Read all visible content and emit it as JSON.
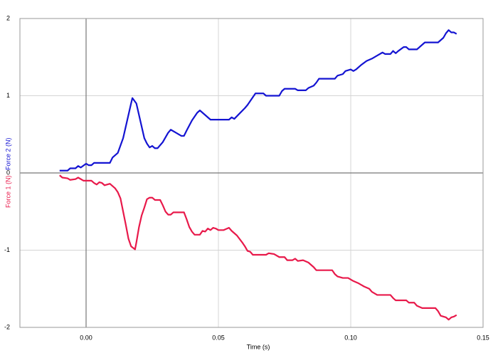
{
  "chart_data": {
    "type": "line",
    "xlabel": "Time (s)",
    "xlim": [
      -0.025,
      0.15
    ],
    "ylim": [
      -2,
      2
    ],
    "xticks": [
      {
        "value": 0,
        "label": "0.00"
      },
      {
        "value": 0.05,
        "label": "0.05"
      },
      {
        "value": 0.1,
        "label": "0.10"
      },
      {
        "value": 0.15,
        "label": "0.15"
      }
    ],
    "yticks": [
      -2,
      -1,
      0,
      1,
      2
    ],
    "grid": true,
    "series": [
      {
        "name": "Force 1 (N)",
        "color": "#e8194a",
        "x": [
          -0.01,
          -0.009,
          -0.007,
          -0.006,
          -0.004,
          -0.003,
          -0.001,
          0.002,
          0.003,
          0.004,
          0.005,
          0.006,
          0.007,
          0.009,
          0.01,
          0.011,
          0.012,
          0.013,
          0.014,
          0.015,
          0.016,
          0.017,
          0.0185,
          0.019,
          0.02,
          0.021,
          0.022,
          0.023,
          0.024,
          0.025,
          0.026,
          0.028,
          0.029,
          0.03,
          0.031,
          0.032,
          0.033,
          0.037,
          0.038,
          0.039,
          0.04,
          0.041,
          0.043,
          0.044,
          0.045,
          0.046,
          0.047,
          0.048,
          0.049,
          0.05,
          0.052,
          0.054,
          0.055,
          0.057,
          0.059,
          0.06,
          0.061,
          0.062,
          0.063,
          0.068,
          0.069,
          0.071,
          0.073,
          0.075,
          0.076,
          0.078,
          0.079,
          0.08,
          0.082,
          0.084,
          0.086,
          0.087,
          0.093,
          0.094,
          0.095,
          0.097,
          0.099,
          0.101,
          0.103,
          0.105,
          0.107,
          0.108,
          0.11,
          0.115,
          0.116,
          0.117,
          0.121,
          0.122,
          0.124,
          0.125,
          0.127,
          0.132,
          0.133,
          0.134,
          0.136,
          0.137,
          0.138,
          0.139,
          0.14
        ],
        "values": [
          -0.03,
          -0.06,
          -0.07,
          -0.09,
          -0.08,
          -0.06,
          -0.1,
          -0.1,
          -0.13,
          -0.15,
          -0.12,
          -0.13,
          -0.16,
          -0.14,
          -0.17,
          -0.2,
          -0.25,
          -0.33,
          -0.5,
          -0.67,
          -0.85,
          -0.95,
          -0.99,
          -0.9,
          -0.7,
          -0.55,
          -0.45,
          -0.34,
          -0.32,
          -0.32,
          -0.35,
          -0.35,
          -0.42,
          -0.5,
          -0.54,
          -0.54,
          -0.51,
          -0.51,
          -0.6,
          -0.7,
          -0.76,
          -0.8,
          -0.8,
          -0.75,
          -0.76,
          -0.72,
          -0.74,
          -0.71,
          -0.72,
          -0.74,
          -0.74,
          -0.71,
          -0.75,
          -0.81,
          -0.9,
          -0.95,
          -1.01,
          -1.02,
          -1.06,
          -1.06,
          -1.04,
          -1.05,
          -1.09,
          -1.09,
          -1.13,
          -1.13,
          -1.11,
          -1.14,
          -1.13,
          -1.16,
          -1.22,
          -1.26,
          -1.26,
          -1.31,
          -1.34,
          -1.36,
          -1.36,
          -1.4,
          -1.43,
          -1.47,
          -1.5,
          -1.54,
          -1.58,
          -1.58,
          -1.62,
          -1.65,
          -1.65,
          -1.68,
          -1.68,
          -1.72,
          -1.75,
          -1.75,
          -1.79,
          -1.85,
          -1.87,
          -1.9,
          -1.87,
          -1.86,
          -1.84
        ]
      },
      {
        "name": "Force 2 (N)",
        "color": "#1414d2",
        "x": [
          -0.01,
          -0.007,
          -0.006,
          -0.004,
          -0.003,
          -0.002,
          0.0,
          0.001,
          0.002,
          0.003,
          0.009,
          0.01,
          0.012,
          0.014,
          0.016,
          0.017,
          0.0175,
          0.019,
          0.02,
          0.021,
          0.022,
          0.023,
          0.024,
          0.025,
          0.026,
          0.027,
          0.029,
          0.031,
          0.032,
          0.034,
          0.036,
          0.037,
          0.038,
          0.04,
          0.042,
          0.043,
          0.044,
          0.046,
          0.047,
          0.054,
          0.055,
          0.056,
          0.058,
          0.06,
          0.061,
          0.063,
          0.064,
          0.067,
          0.068,
          0.073,
          0.074,
          0.075,
          0.079,
          0.08,
          0.083,
          0.084,
          0.086,
          0.087,
          0.088,
          0.094,
          0.095,
          0.097,
          0.098,
          0.1,
          0.101,
          0.102,
          0.104,
          0.106,
          0.108,
          0.11,
          0.112,
          0.113,
          0.115,
          0.116,
          0.117,
          0.118,
          0.12,
          0.121,
          0.122,
          0.125,
          0.127,
          0.128,
          0.133,
          0.135,
          0.136,
          0.137,
          0.138,
          0.139,
          0.14
        ],
        "values": [
          0.03,
          0.03,
          0.06,
          0.06,
          0.09,
          0.07,
          0.12,
          0.1,
          0.1,
          0.13,
          0.13,
          0.2,
          0.26,
          0.45,
          0.75,
          0.9,
          0.97,
          0.9,
          0.75,
          0.6,
          0.45,
          0.38,
          0.33,
          0.35,
          0.32,
          0.32,
          0.4,
          0.52,
          0.56,
          0.52,
          0.48,
          0.48,
          0.55,
          0.68,
          0.78,
          0.81,
          0.78,
          0.72,
          0.69,
          0.69,
          0.72,
          0.7,
          0.77,
          0.84,
          0.88,
          0.98,
          1.03,
          1.03,
          1.0,
          1.0,
          1.06,
          1.09,
          1.09,
          1.07,
          1.07,
          1.1,
          1.13,
          1.17,
          1.22,
          1.22,
          1.26,
          1.28,
          1.32,
          1.34,
          1.32,
          1.34,
          1.4,
          1.45,
          1.48,
          1.52,
          1.56,
          1.54,
          1.54,
          1.58,
          1.55,
          1.58,
          1.63,
          1.63,
          1.6,
          1.6,
          1.66,
          1.69,
          1.69,
          1.75,
          1.81,
          1.85,
          1.82,
          1.82,
          1.8
        ]
      }
    ]
  }
}
